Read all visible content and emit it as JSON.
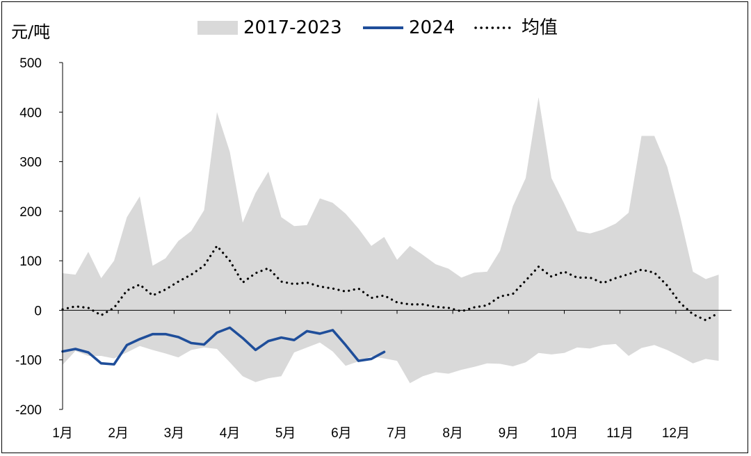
{
  "chart_data": {
    "type": "area+line",
    "unit_label": "元/吨",
    "legend": [
      {
        "label": "2017-2023",
        "kind": "band",
        "color": "#d9d9d9"
      },
      {
        "label": "2024",
        "kind": "line",
        "color": "#1f4e9a"
      },
      {
        "label": "均值",
        "kind": "dotted",
        "color": "#000000"
      }
    ],
    "ylim": [
      -200,
      500
    ],
    "y_ticks": [
      500,
      400,
      300,
      200,
      100,
      0,
      -100,
      -200
    ],
    "x_range": [
      0,
      52
    ],
    "month_labels": [
      {
        "label": "1月",
        "x": 0
      },
      {
        "label": "2月",
        "x": 4.33
      },
      {
        "label": "3月",
        "x": 8.67
      },
      {
        "label": "4月",
        "x": 13
      },
      {
        "label": "5月",
        "x": 17.33
      },
      {
        "label": "6月",
        "x": 21.67
      },
      {
        "label": "7月",
        "x": 26
      },
      {
        "label": "8月",
        "x": 30.33
      },
      {
        "label": "9月",
        "x": 34.67
      },
      {
        "label": "10月",
        "x": 39
      },
      {
        "label": "11月",
        "x": 43.33
      },
      {
        "label": "12月",
        "x": 47.67
      }
    ],
    "band_max": [
      75,
      72,
      118,
      65,
      100,
      188,
      230,
      90,
      105,
      140,
      160,
      202,
      400,
      320,
      177,
      237,
      280,
      188,
      170,
      172,
      226,
      217,
      195,
      165,
      130,
      148,
      102,
      130,
      112,
      93,
      84,
      66,
      76,
      78,
      120,
      210,
      267,
      430,
      267,
      215,
      160,
      155,
      163,
      175,
      197,
      352,
      352,
      290,
      190,
      78,
      63,
      72
    ],
    "band_min": [
      -110,
      -82,
      -92,
      -92,
      -97,
      -85,
      -72,
      -80,
      -87,
      -95,
      -80,
      -75,
      -78,
      -105,
      -133,
      -145,
      -137,
      -133,
      -85,
      -75,
      -65,
      -83,
      -112,
      -103,
      -93,
      -97,
      -102,
      -147,
      -133,
      -125,
      -128,
      -120,
      -114,
      -107,
      -108,
      -113,
      -105,
      -86,
      -89,
      -86,
      -75,
      -77,
      -70,
      -68,
      -92,
      -76,
      -70,
      -80,
      -93,
      -107,
      -98,
      -102
    ],
    "mean": [
      2,
      8,
      5,
      -10,
      5,
      40,
      52,
      30,
      42,
      58,
      72,
      90,
      130,
      100,
      56,
      75,
      85,
      58,
      53,
      56,
      48,
      44,
      38,
      44,
      25,
      30,
      16,
      12,
      12,
      7,
      5,
      -2,
      6,
      10,
      28,
      33,
      60,
      88,
      68,
      78,
      66,
      66,
      55,
      65,
      73,
      82,
      76,
      50,
      15,
      -8,
      -20,
      -5
    ],
    "series_2024": [
      -83,
      -78,
      -85,
      -107,
      -109,
      -70,
      -58,
      -48,
      -48,
      -54,
      -66,
      -69,
      -45,
      -35,
      -56,
      -80,
      -62,
      -55,
      -60,
      -42,
      -47,
      -40,
      -70,
      -102,
      -98,
      -84
    ]
  }
}
